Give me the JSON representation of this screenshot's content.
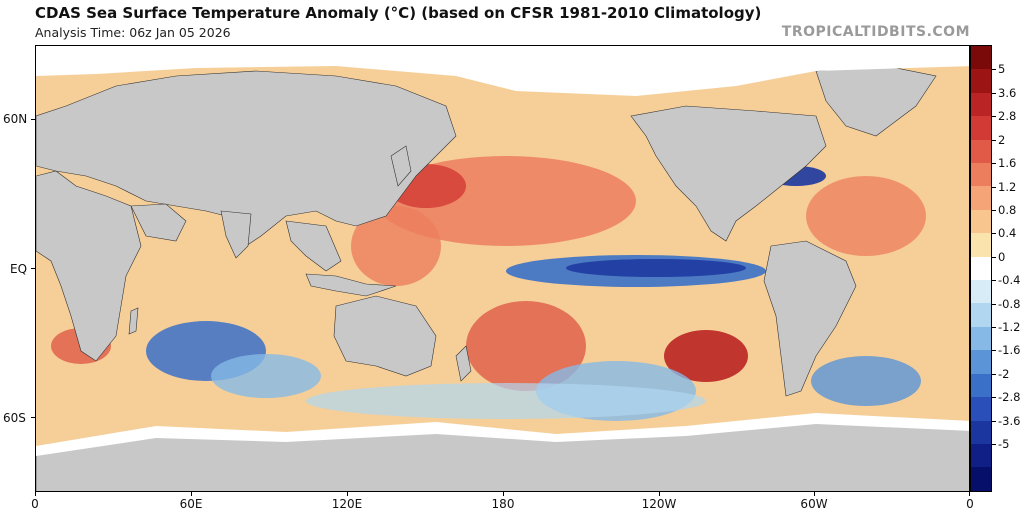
{
  "header": {
    "title": "CDAS Sea Surface Temperature Anomaly (°C) (based on CFSR 1981-2010 Climatology)",
    "analysis_time": "Analysis Time: 06z Jan 05 2026",
    "brand": "TROPICALTIDBITS.COM"
  },
  "axes": {
    "lat_labels": [
      "60N",
      "EQ",
      "60S"
    ],
    "lon_labels": [
      "0",
      "60E",
      "120E",
      "180",
      "120W",
      "60W",
      "0"
    ]
  },
  "colorbar": {
    "labels": [
      "5",
      "3.6",
      "2.8",
      "2",
      "1.6",
      "1.2",
      "0.8",
      "0.4",
      "0",
      "-0.4",
      "-0.8",
      "-1.2",
      "-1.6",
      "-2",
      "-2.8",
      "-3.6",
      "-5"
    ],
    "colors": [
      "#7a0a0a",
      "#9c1414",
      "#bb2424",
      "#d23a35",
      "#e05a47",
      "#ec7e5e",
      "#f4a477",
      "#f8c58f",
      "#fbe3ae",
      "#ffffff",
      "#d7ecf7",
      "#b0d6f0",
      "#86b9e6",
      "#5b95d8",
      "#3a70c8",
      "#2a4fb8",
      "#1c36a0",
      "#0f1f85",
      "#06106a"
    ]
  },
  "map_colors": {
    "land": "#c8c8c8",
    "ice": "#ffffff",
    "ocean_base": "#f6cf98"
  }
}
